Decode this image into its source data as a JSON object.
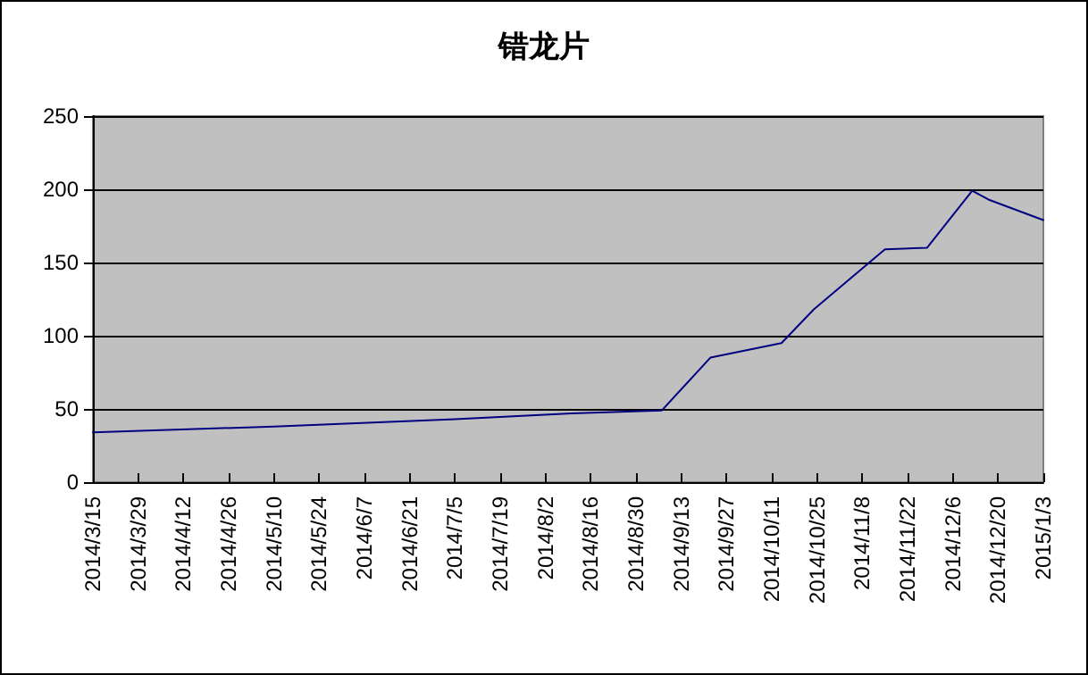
{
  "chart_data": {
    "type": "line",
    "title": "错龙片",
    "x": [
      "2014-03-15",
      "2014-05-10",
      "2014-07-05",
      "2014-08-10",
      "2014-09-07",
      "2014-09-22",
      "2014-10-14",
      "2014-10-24",
      "2014-11-15",
      "2014-11-28",
      "2014-12-12",
      "2014-12-17",
      "2015-01-03"
    ],
    "series": [
      {
        "color": "#000080",
        "values": [
          34,
          38,
          43,
          47,
          49,
          85,
          95,
          118,
          159,
          160,
          199,
          193,
          179
        ]
      }
    ],
    "xlim": [
      "2014-03-15",
      "2015-01-03"
    ],
    "xticks": [
      {
        "value": "2014-03-15",
        "label": "2014/3/15"
      },
      {
        "value": "2014-03-29",
        "label": "2014/3/29"
      },
      {
        "value": "2014-04-12",
        "label": "2014/4/12"
      },
      {
        "value": "2014-04-26",
        "label": "2014/4/26"
      },
      {
        "value": "2014-05-10",
        "label": "2014/5/10"
      },
      {
        "value": "2014-05-24",
        "label": "2014/5/24"
      },
      {
        "value": "2014-06-07",
        "label": "2014/6/7"
      },
      {
        "value": "2014-06-21",
        "label": "2014/6/21"
      },
      {
        "value": "2014-07-05",
        "label": "2014/7/5"
      },
      {
        "value": "2014-07-19",
        "label": "2014/7/19"
      },
      {
        "value": "2014-08-02",
        "label": "2014/8/2"
      },
      {
        "value": "2014-08-16",
        "label": "2014/8/16"
      },
      {
        "value": "2014-08-30",
        "label": "2014/8/30"
      },
      {
        "value": "2014-09-13",
        "label": "2014/9/13"
      },
      {
        "value": "2014-09-27",
        "label": "2014/9/27"
      },
      {
        "value": "2014-10-11",
        "label": "2014/10/11"
      },
      {
        "value": "2014-10-25",
        "label": "2014/10/25"
      },
      {
        "value": "2014-11-08",
        "label": "2014/11/8"
      },
      {
        "value": "2014-11-22",
        "label": "2014/11/22"
      },
      {
        "value": "2014-12-06",
        "label": "2014/12/6"
      },
      {
        "value": "2014-12-20",
        "label": "2014/12/20"
      },
      {
        "value": "2015-01-03",
        "label": "2015/1/3"
      }
    ],
    "ylim": [
      0,
      250
    ],
    "yticks": [
      0,
      50,
      100,
      150,
      200,
      250
    ],
    "grid": "y",
    "marker": "none",
    "line_style": "solid"
  }
}
